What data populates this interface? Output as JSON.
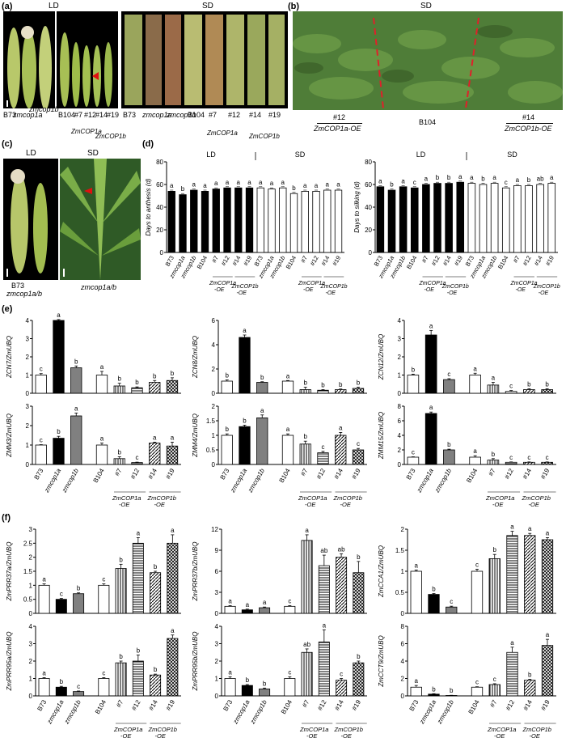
{
  "panel_letters": [
    "(a)",
    "(b)",
    "(c)",
    "(d)",
    "(e)",
    "(f)"
  ],
  "a": {
    "ld": "LD",
    "sd": "SD",
    "ld_labels": [
      "B73",
      "zmcop1a",
      "zmcop1b",
      "B104",
      "#7",
      "#12",
      "#14",
      "#19"
    ],
    "sd_labels": [
      "B73",
      "zmcop1a",
      "zmcop1b",
      "B104",
      "#7",
      "#12",
      "#14",
      "#19"
    ],
    "group1": "ZmCOP1a",
    "group2": "ZmCOP1b",
    "suffix": "-OE"
  },
  "b": {
    "sd": "SD",
    "left_num": "#12",
    "left_name": "ZmCOP1a-OE",
    "mid": "B104",
    "right_num": "#14",
    "right_name": "ZmCOP1b-OE"
  },
  "c": {
    "ld": "LD",
    "sd": "SD",
    "label1": "B73",
    "label2": "zmcop1a/b",
    "label3": "zmcop1a/b"
  },
  "genotypes": [
    "B73",
    "zmcop1a",
    "zmcop1b",
    "B104",
    "#7",
    "#12",
    "#14",
    "#19"
  ],
  "groups": {
    "a": "ZmCOP1a",
    "b": "ZmCOP1b",
    "oe": "-OE"
  },
  "chart_data": [
    {
      "type": "bar",
      "panel": "d",
      "ylabel": "Days to anthesis (d)",
      "ylim": [
        0,
        80
      ],
      "yticks": [
        0,
        20,
        40,
        60,
        80
      ],
      "conditions": [
        "LD",
        "SD"
      ],
      "categories": [
        "B73",
        "zmcop1a",
        "zmcop1b",
        "B104",
        "#7",
        "#12",
        "#14",
        "#19",
        "B73",
        "zmcop1a",
        "zmcop1b",
        "B104",
        "#7",
        "#12",
        "#14",
        "#19"
      ],
      "values": [
        54,
        51,
        55,
        54,
        56,
        57,
        57,
        57,
        57,
        56,
        57,
        52,
        54,
        54,
        55,
        55
      ],
      "errors": [
        1,
        1,
        1,
        1,
        1,
        1,
        1,
        1,
        1,
        1,
        1,
        1,
        1,
        1,
        1,
        1
      ],
      "letters": [
        "a",
        "b",
        "a",
        "a",
        "a",
        "a",
        "a",
        "a",
        "a",
        "a",
        "a",
        "b",
        "a",
        "a",
        "a",
        "a"
      ]
    },
    {
      "type": "bar",
      "panel": "d",
      "ylabel": "Days to silking (d)",
      "ylim": [
        0,
        80
      ],
      "yticks": [
        0,
        20,
        40,
        60,
        80
      ],
      "conditions": [
        "LD",
        "SD"
      ],
      "categories": [
        "B73",
        "zmcop1a",
        "zmcop1b",
        "B104",
        "#7",
        "#12",
        "#14",
        "#19",
        "B73",
        "zmcop1a",
        "zmcop1b",
        "B104",
        "#7",
        "#12",
        "#14",
        "#19"
      ],
      "values": [
        58,
        55,
        58,
        57,
        60,
        61,
        61,
        62,
        61,
        60,
        61,
        57,
        59,
        59,
        60,
        61
      ],
      "errors": [
        1,
        1,
        1,
        1,
        1,
        1,
        1,
        1,
        1,
        1,
        1,
        1,
        1,
        1,
        1,
        1
      ],
      "letters": [
        "a",
        "b",
        "a",
        "c",
        "a",
        "b",
        "b",
        "a",
        "a",
        "b",
        "a",
        "c",
        "a",
        "b",
        "ab",
        "a"
      ]
    },
    {
      "type": "bar",
      "panel": "e",
      "ylabel": "ZCN7/ZmUBQ",
      "ylim": [
        0,
        4
      ],
      "yticks": [
        0,
        1,
        2,
        3,
        4
      ],
      "values": [
        1.0,
        4.0,
        1.4,
        1.0,
        0.4,
        0.3,
        0.6,
        0.7
      ],
      "errors": [
        0.08,
        0.05,
        0.1,
        0.2,
        0.15,
        0.05,
        0.1,
        0.15
      ],
      "letters": [
        "c",
        "a",
        "b",
        "a",
        "b",
        "b",
        "b",
        "b"
      ]
    },
    {
      "type": "bar",
      "panel": "e",
      "ylabel": "ZCN8/ZmUBQ",
      "ylim": [
        0,
        6
      ],
      "yticks": [
        0,
        2,
        4,
        6
      ],
      "values": [
        1.0,
        4.6,
        0.9,
        1.0,
        0.3,
        0.25,
        0.3,
        0.4
      ],
      "errors": [
        0.1,
        0.2,
        0.05,
        0.05,
        0.2,
        0.05,
        0.05,
        0.1
      ],
      "letters": [
        "b",
        "a",
        "b",
        "a",
        "b",
        "b",
        "b",
        "b"
      ]
    },
    {
      "type": "bar",
      "panel": "e",
      "ylabel": "ZCN12/ZmUBQ",
      "ylim": [
        0,
        4
      ],
      "yticks": [
        0,
        1,
        2,
        3,
        4
      ],
      "values": [
        1.0,
        3.2,
        0.75,
        1.0,
        0.45,
        0.1,
        0.2,
        0.2
      ],
      "errors": [
        0.05,
        0.25,
        0.05,
        0.1,
        0.15,
        0.05,
        0.05,
        0.05
      ],
      "letters": [
        "b",
        "a",
        "c",
        "a",
        "a",
        "c",
        "b",
        "b"
      ]
    },
    {
      "type": "bar",
      "panel": "e",
      "ylabel": "ZMM3/ZmUBQ",
      "ylim": [
        0,
        3
      ],
      "yticks": [
        0,
        1,
        2,
        3
      ],
      "values": [
        1.0,
        1.35,
        2.5,
        1.0,
        0.3,
        0.1,
        1.1,
        0.95
      ],
      "errors": [
        0.02,
        0.1,
        0.15,
        0.1,
        0.1,
        0.02,
        0.05,
        0.2
      ],
      "letters": [
        "c",
        "b",
        "a",
        "a",
        "b",
        "c",
        "a",
        "a"
      ]
    },
    {
      "type": "bar",
      "panel": "e",
      "ylabel": "ZMM4/ZmUBQ",
      "ylim": [
        0,
        2.0
      ],
      "yticks": [
        0,
        0.5,
        1.0,
        1.5,
        2.0
      ],
      "values": [
        1.0,
        1.3,
        1.6,
        1.0,
        0.7,
        0.4,
        1.0,
        0.5
      ],
      "errors": [
        0.05,
        0.05,
        0.1,
        0.05,
        0.1,
        0.05,
        0.1,
        0.05
      ],
      "letters": [
        "b",
        "b",
        "a",
        "a",
        "b",
        "c",
        "a",
        "c"
      ]
    },
    {
      "type": "bar",
      "panel": "e",
      "ylabel": "ZMM15/ZmUBQ",
      "ylim": [
        0,
        8
      ],
      "yticks": [
        0,
        2,
        4,
        6,
        8
      ],
      "values": [
        1.0,
        7.0,
        2.0,
        1.0,
        0.6,
        0.3,
        0.3,
        0.3
      ],
      "errors": [
        0.05,
        0.2,
        0.1,
        0.2,
        0.2,
        0.05,
        0.05,
        0.05
      ],
      "letters": [
        "c",
        "a",
        "b",
        "a",
        "b",
        "c",
        "c",
        "c"
      ]
    },
    {
      "type": "bar",
      "panel": "f",
      "ylabel": "ZmPRR37a/ZmUBQ",
      "ylim": [
        0,
        3.0
      ],
      "yticks": [
        0,
        0.5,
        1.0,
        1.5,
        2.0,
        2.5,
        3.0
      ],
      "values": [
        1.0,
        0.5,
        0.7,
        1.0,
        1.6,
        2.5,
        1.45,
        2.5
      ],
      "errors": [
        0.05,
        0.03,
        0.03,
        0.05,
        0.15,
        0.2,
        0.05,
        0.3
      ],
      "letters": [
        "a",
        "c",
        "b",
        "c",
        "b",
        "a",
        "b",
        "a"
      ]
    },
    {
      "type": "bar",
      "panel": "f",
      "ylabel": "ZmPRR37b/ZmUBQ",
      "ylim": [
        0,
        12
      ],
      "yticks": [
        0,
        3,
        6,
        9,
        12
      ],
      "values": [
        1.0,
        0.5,
        0.8,
        1.0,
        10.4,
        6.8,
        8.0,
        5.8
      ],
      "errors": [
        0.1,
        0.1,
        0.1,
        0.1,
        0.8,
        1.5,
        0.5,
        1.6
      ],
      "letters": [
        "a",
        "a",
        "a",
        "c",
        "a",
        "ab",
        "ab",
        "b"
      ]
    },
    {
      "type": "bar",
      "panel": "f",
      "ylabel": "ZmCCA1/ZmUBQ",
      "ylim": [
        0,
        2.0
      ],
      "yticks": [
        0,
        0.5,
        1.0,
        1.5,
        2.0
      ],
      "values": [
        1.0,
        0.45,
        0.15,
        1.0,
        1.3,
        1.85,
        1.85,
        1.75
      ],
      "errors": [
        0.03,
        0.02,
        0.02,
        0.05,
        0.1,
        0.1,
        0.05,
        0.05
      ],
      "letters": [
        "a",
        "b",
        "c",
        "c",
        "b",
        "a",
        "a",
        "a"
      ]
    },
    {
      "type": "bar",
      "panel": "f",
      "ylabel": "ZmPRR95a/ZmUBQ",
      "ylim": [
        0,
        4
      ],
      "yticks": [
        0,
        1,
        2,
        3,
        4
      ],
      "values": [
        1.0,
        0.5,
        0.25,
        1.0,
        1.9,
        2.0,
        1.2,
        3.3
      ],
      "errors": [
        0.05,
        0.05,
        0.03,
        0.05,
        0.1,
        0.35,
        0.05,
        0.2
      ],
      "letters": [
        "a",
        "b",
        "c",
        "c",
        "b",
        "b",
        "b",
        "a"
      ]
    },
    {
      "type": "bar",
      "panel": "f",
      "ylabel": "ZmPRR95b/ZmUBQ",
      "ylim": [
        0,
        4
      ],
      "yticks": [
        0,
        1,
        2,
        3,
        4
      ],
      "values": [
        1.0,
        0.6,
        0.4,
        1.0,
        2.5,
        3.1,
        0.9,
        1.9
      ],
      "errors": [
        0.1,
        0.05,
        0.05,
        0.1,
        0.2,
        0.7,
        0.1,
        0.1
      ],
      "letters": [
        "a",
        "b",
        "b",
        "c",
        "ab",
        "a",
        "c",
        "b"
      ]
    },
    {
      "type": "bar",
      "panel": "f",
      "ylabel": "ZmCCT9/ZmUBQ",
      "ylim": [
        0,
        8
      ],
      "yticks": [
        0,
        2,
        4,
        6,
        8
      ],
      "values": [
        1.0,
        0.2,
        0.05,
        1.0,
        1.3,
        5.0,
        1.8,
        5.8
      ],
      "errors": [
        0.2,
        0.05,
        0.02,
        0.05,
        0.1,
        0.6,
        0.1,
        0.7
      ],
      "letters": [
        "a",
        "b",
        "b",
        "c",
        "c",
        "a",
        "b",
        "a"
      ]
    }
  ]
}
